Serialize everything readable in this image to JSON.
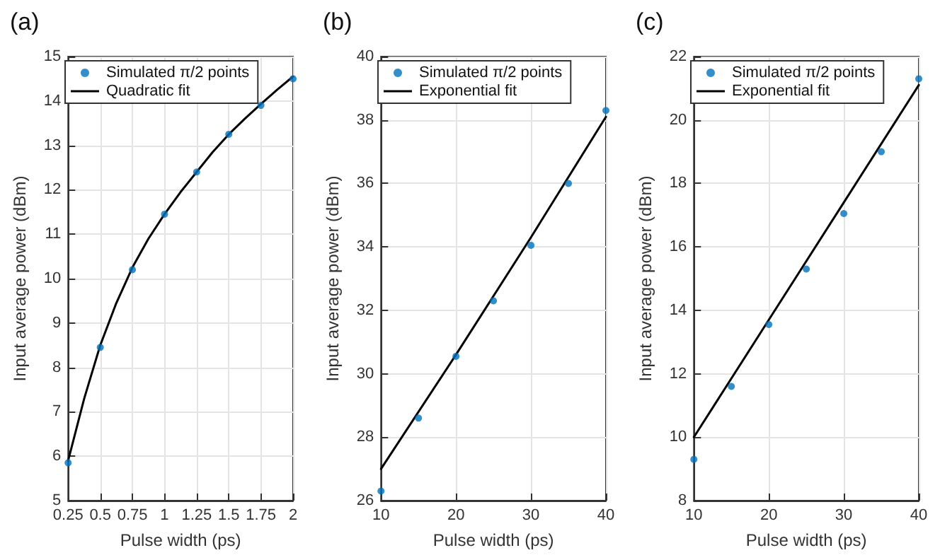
{
  "chart_data": [
    {
      "type": "scatter",
      "title": "(a)",
      "xlabel": "Pulse width (ps)",
      "ylabel": "Input average power (dBm)",
      "xlim": [
        0.25,
        2
      ],
      "xticks": [
        0.25,
        0.5,
        0.75,
        1,
        1.25,
        1.5,
        1.75,
        2
      ],
      "ylim": [
        5,
        15
      ],
      "yticks": [
        5,
        6,
        7,
        8,
        9,
        10,
        11,
        12,
        13,
        14,
        15
      ],
      "grid": true,
      "legend": "top left",
      "series": [
        {
          "name": "Simulated π/2 points",
          "marker": "circle",
          "color": "#0072bd",
          "x": [
            0.25,
            0.5,
            0.75,
            1,
            1.25,
            1.5,
            1.75,
            2
          ],
          "values": [
            5.85,
            8.45,
            10.2,
            11.45,
            12.4,
            13.25,
            13.9,
            14.5
          ]
        },
        {
          "name": "Quadratic fit",
          "type": "line",
          "marker": "none",
          "color": "#000000",
          "x": [
            0.25,
            0.375,
            0.5,
            0.625,
            0.75,
            0.875,
            1,
            1.125,
            1.25,
            1.375,
            1.5,
            1.625,
            1.75,
            1.875,
            2
          ],
          "values": [
            5.9,
            7.3,
            8.5,
            9.45,
            10.25,
            10.9,
            11.45,
            11.95,
            12.4,
            12.85,
            13.25,
            13.6,
            13.93,
            14.25,
            14.55
          ]
        }
      ]
    },
    {
      "type": "scatter",
      "title": "(b)",
      "xlabel": "Pulse width (ps)",
      "ylabel": "Input average power (dBm)",
      "xlim": [
        10,
        40
      ],
      "xticks": [
        10,
        20,
        30,
        40
      ],
      "ylim": [
        26,
        40
      ],
      "yticks": [
        26,
        28,
        30,
        32,
        34,
        36,
        38,
        40
      ],
      "grid": true,
      "legend": "top left",
      "series": [
        {
          "name": "Simulated π/2 points",
          "marker": "circle",
          "color": "#0072bd",
          "x": [
            10,
            15,
            20,
            25,
            30,
            35,
            40
          ],
          "values": [
            26.3,
            28.6,
            30.55,
            32.3,
            34.05,
            36.0,
            38.3
          ]
        },
        {
          "name": "Exponential fit",
          "type": "line",
          "marker": "none",
          "color": "#000000",
          "x": [
            10,
            20,
            30,
            40
          ],
          "values": [
            27.0,
            30.6,
            34.3,
            38.1
          ]
        }
      ]
    },
    {
      "type": "scatter",
      "title": "(c)",
      "xlabel": "Pulse width (ps)",
      "ylabel": "Input average power (dBm)",
      "xlim": [
        10,
        40
      ],
      "xticks": [
        10,
        20,
        30,
        40
      ],
      "ylim": [
        8,
        22
      ],
      "yticks": [
        8,
        10,
        12,
        14,
        16,
        18,
        20,
        22
      ],
      "grid": true,
      "legend": "top left",
      "series": [
        {
          "name": "Simulated π/2 points",
          "marker": "circle",
          "color": "#0072bd",
          "x": [
            10,
            15,
            20,
            25,
            30,
            35,
            40
          ],
          "values": [
            9.3,
            11.6,
            13.55,
            15.3,
            17.05,
            19.0,
            21.3
          ]
        },
        {
          "name": "Exponential fit",
          "type": "line",
          "marker": "none",
          "color": "#000000",
          "x": [
            10,
            20,
            30,
            40
          ],
          "values": [
            10.0,
            13.7,
            17.4,
            21.1
          ]
        }
      ]
    }
  ]
}
